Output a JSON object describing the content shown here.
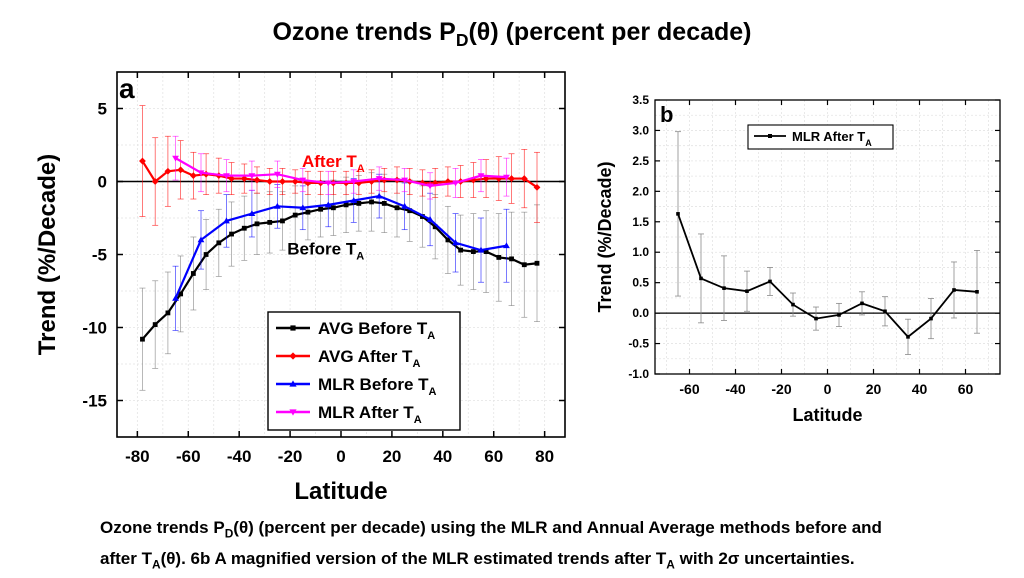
{
  "title": {
    "prefix": "Ozone trends P",
    "sub": "D",
    "suffix": "(θ) (percent per decade)"
  },
  "caption": {
    "l1a": "Ozone trends P",
    "l1sub": "D",
    "l1b": "(θ) (percent per decade) using the MLR and Annual Average methods before and",
    "l2a": "after T",
    "l2sub": "A",
    "l2b": "(θ). 6b A magnified version of the MLR estimated trends after T",
    "l2sub2": "A",
    "l2c": " with 2σ uncertainties."
  },
  "colors": {
    "avg_before": "#000000",
    "avg_after": "#ff0000",
    "mlr_before": "#0000ff",
    "mlr_after": "#ff00ff"
  },
  "chart_data": [
    {
      "type": "line",
      "panel_label": "a",
      "xlabel": "Latitude",
      "ylabel": "Trend (%/Decade)",
      "xlim": [
        -88,
        88
      ],
      "ylim": [
        -17.5,
        7.5
      ],
      "xticks": [
        "-80",
        "-60",
        "-40",
        "-20",
        "0",
        "20",
        "40",
        "60",
        "80"
      ],
      "yticks": [
        "5",
        "0",
        "-5",
        "-10",
        "-15"
      ],
      "grid": true,
      "legend_position": "bottom-center",
      "annotations": [
        {
          "text": "After T",
          "sub": "A",
          "x": -3,
          "y": 1.0,
          "color": "#ff0000"
        },
        {
          "text": "Before T",
          "sub": "A",
          "x": -6,
          "y": -5.0,
          "color": "#000000"
        }
      ],
      "series": [
        {
          "name": "AVG Before T",
          "sub": "A",
          "color": "#000000",
          "marker": "square",
          "x": [
            -78,
            -73,
            -68,
            -63,
            -58,
            -53,
            -48,
            -43,
            -38,
            -33,
            -28,
            -23,
            -18,
            -13,
            -8,
            -3,
            2,
            7,
            12,
            17,
            22,
            27,
            32,
            37,
            42,
            47,
            52,
            57,
            62,
            67,
            72,
            77
          ],
          "y": [
            -10.8,
            -9.8,
            -9.0,
            -7.7,
            -6.3,
            -5.0,
            -4.2,
            -3.6,
            -3.2,
            -2.9,
            -2.8,
            -2.7,
            -2.3,
            -2.1,
            -1.9,
            -1.8,
            -1.6,
            -1.5,
            -1.4,
            -1.5,
            -1.8,
            -2.0,
            -2.4,
            -3.1,
            -4.0,
            -4.7,
            -4.8,
            -4.8,
            -5.2,
            -5.3,
            -5.7,
            -5.6
          ],
          "err": [
            3.5,
            3.0,
            2.8,
            2.6,
            2.5,
            2.4,
            2.3,
            2.2,
            2.2,
            2.1,
            2.1,
            2.0,
            2.0,
            1.9,
            1.9,
            1.9,
            1.9,
            1.9,
            2.0,
            2.0,
            2.0,
            2.1,
            2.1,
            2.2,
            2.3,
            2.4,
            2.6,
            2.8,
            3.0,
            3.2,
            3.6,
            4.0
          ]
        },
        {
          "name": "AVG After T",
          "sub": "A",
          "color": "#ff0000",
          "marker": "diamond",
          "x": [
            -78,
            -73,
            -68,
            -63,
            -58,
            -53,
            -48,
            -43,
            -38,
            -33,
            -28,
            -23,
            -18,
            -13,
            -8,
            -3,
            2,
            7,
            12,
            17,
            22,
            27,
            32,
            37,
            42,
            47,
            52,
            57,
            62,
            67,
            72,
            77
          ],
          "y": [
            1.4,
            0.0,
            0.7,
            0.8,
            0.4,
            0.5,
            0.4,
            0.2,
            0.2,
            0.1,
            0.0,
            0.0,
            0.0,
            -0.1,
            -0.1,
            -0.1,
            -0.1,
            -0.1,
            0.0,
            0.1,
            0.1,
            0.0,
            -0.1,
            -0.1,
            0.0,
            0.0,
            0.1,
            0.2,
            0.2,
            0.2,
            0.2,
            -0.4
          ],
          "err": [
            3.8,
            3.0,
            2.4,
            2.0,
            1.6,
            1.4,
            1.2,
            1.1,
            1.0,
            0.9,
            0.9,
            0.9,
            0.8,
            0.8,
            0.8,
            0.8,
            0.8,
            0.8,
            0.8,
            0.8,
            0.9,
            0.9,
            0.9,
            1.0,
            1.0,
            1.1,
            1.2,
            1.3,
            1.5,
            1.7,
            2.0,
            2.4
          ]
        },
        {
          "name": "MLR Before T",
          "sub": "A",
          "color": "#0000ff",
          "marker": "triangle",
          "x": [
            -65,
            -55,
            -45,
            -35,
            -25,
            -15,
            -5,
            5,
            15,
            25,
            35,
            45,
            55,
            65
          ],
          "y": [
            -8.0,
            -4.0,
            -2.7,
            -2.2,
            -1.7,
            -1.8,
            -1.6,
            -1.3,
            -1.0,
            -1.7,
            -2.6,
            -4.2,
            -4.7,
            -4.4
          ],
          "err": [
            2.2,
            2.0,
            1.8,
            1.6,
            1.5,
            1.5,
            1.5,
            1.5,
            1.5,
            1.6,
            1.8,
            2.0,
            2.2,
            2.5
          ]
        },
        {
          "name": "MLR After T",
          "sub": "A",
          "color": "#ff00ff",
          "marker": "triangle-down",
          "x": [
            -65,
            -55,
            -45,
            -35,
            -25,
            -15,
            -5,
            5,
            15,
            25,
            35,
            45,
            55,
            65
          ],
          "y": [
            1.6,
            0.6,
            0.4,
            0.4,
            0.5,
            0.1,
            -0.1,
            0.0,
            0.2,
            0.1,
            -0.3,
            -0.1,
            0.4,
            0.3
          ],
          "err": [
            1.5,
            1.3,
            1.1,
            1.0,
            0.9,
            0.8,
            0.8,
            0.8,
            0.8,
            0.8,
            0.9,
            1.0,
            1.1,
            1.3
          ]
        }
      ]
    },
    {
      "type": "line",
      "panel_label": "b",
      "xlabel": "Latitude",
      "ylabel": "Trend (%/Decade)",
      "xlim": [
        -75,
        75
      ],
      "ylim": [
        -1.0,
        3.5
      ],
      "xticks": [
        "-60",
        "-40",
        "-20",
        "0",
        "20",
        "40",
        "60"
      ],
      "yticks": [
        "3.5",
        "3.0",
        "2.5",
        "2.0",
        "1.5",
        "1.0",
        "0.5",
        "0.0",
        "-0.5",
        "-1.0"
      ],
      "grid": true,
      "legend_position": "top-center",
      "series": [
        {
          "name": "MLR After T",
          "sub": "A",
          "color": "#000000",
          "marker": "square",
          "x": [
            -65,
            -55,
            -45,
            -35,
            -25,
            -15,
            -5,
            5,
            15,
            25,
            35,
            45,
            55,
            65
          ],
          "y": [
            1.63,
            0.57,
            0.41,
            0.36,
            0.52,
            0.14,
            -0.09,
            -0.03,
            0.16,
            0.03,
            -0.39,
            -0.09,
            0.38,
            0.35
          ],
          "err": [
            1.35,
            0.73,
            0.53,
            0.33,
            0.23,
            0.19,
            0.19,
            0.19,
            0.19,
            0.24,
            0.29,
            0.33,
            0.46,
            0.68
          ]
        }
      ]
    }
  ]
}
